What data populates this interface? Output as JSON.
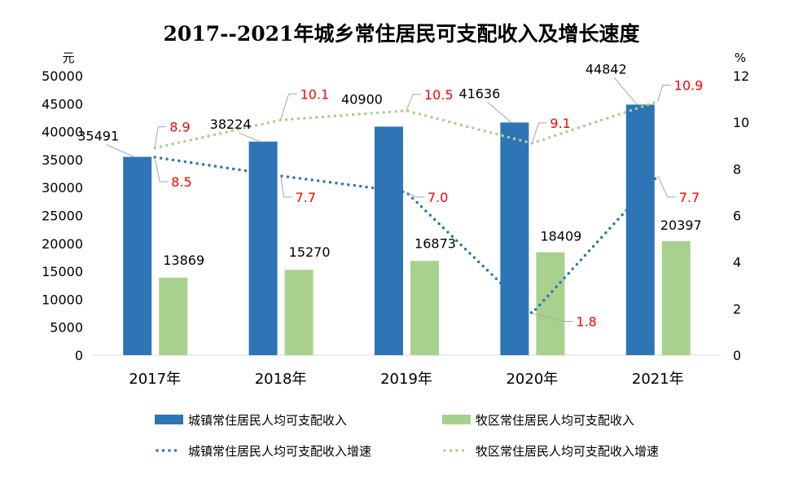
{
  "chart_data": {
    "type": "bar+line",
    "title": "2017--2021年城乡常住居民可支配收入及增长速度",
    "ylabel_left": "元",
    "ylabel_right": "%",
    "categories": [
      "2017年",
      "2018年",
      "2019年",
      "2020年",
      "2021年"
    ],
    "ylim_left": [
      0,
      50000
    ],
    "yticks_left": [
      "0",
      "5000",
      "10000",
      "15000",
      "20000",
      "25000",
      "30000",
      "35000",
      "40000",
      "45000",
      "50000"
    ],
    "ylim_right": [
      0,
      12
    ],
    "yticks_right": [
      "0",
      "2",
      "4",
      "6",
      "8",
      "10",
      "12"
    ],
    "grid": false,
    "legend_position": "bottom",
    "series": [
      {
        "name": "城镇常住居民人均可支配收入",
        "kind": "bar",
        "axis": "left",
        "color": "#2E75B6",
        "values": [
          35491,
          38224,
          40900,
          41636,
          44842
        ]
      },
      {
        "name": "牧区常住居民人均可支配收入",
        "kind": "bar",
        "axis": "left",
        "color": "#A9D18E",
        "values": [
          13869,
          15270,
          16873,
          18409,
          20397
        ]
      },
      {
        "name": "城镇常住居民人均可支配收入增速",
        "kind": "line-dotted",
        "axis": "right",
        "color": "#2E75B6",
        "values": [
          8.5,
          7.7,
          7.0,
          1.8,
          7.7
        ]
      },
      {
        "name": "牧区常住居民人均可支配收入增速",
        "kind": "line-dotted",
        "axis": "right",
        "color": "#A9D18E",
        "values": [
          8.9,
          10.1,
          10.5,
          9.1,
          10.9
        ]
      }
    ],
    "label_colors": {
      "bar": "#000000",
      "line": "#FF0000"
    }
  }
}
